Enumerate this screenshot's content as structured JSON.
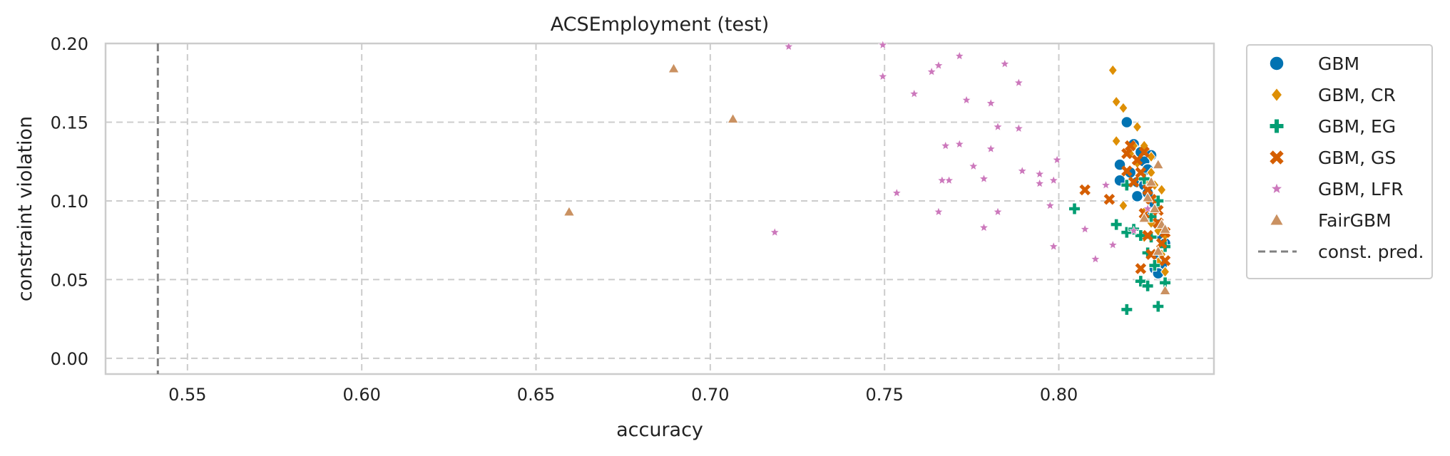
{
  "chart_data": {
    "type": "scatter",
    "title": "ACSEmployment (test)",
    "xlabel": "accuracy",
    "ylabel": "constraint violation",
    "xlim": [
      0.5265,
      0.8445
    ],
    "ylim": [
      -0.01,
      0.2
    ],
    "xticks": [
      "0.55",
      "0.60",
      "0.65",
      "0.70",
      "0.75",
      "0.80"
    ],
    "yticks": [
      "0.00",
      "0.05",
      "0.10",
      "0.15",
      "0.20"
    ],
    "grid": true,
    "legend_position": "outside-right",
    "reference_line": {
      "name": "const. pred.",
      "x": 0.5415,
      "style": "dashed",
      "color": "#808080"
    },
    "series": [
      {
        "name": "GBM",
        "marker": "circle",
        "color": "#0173b2",
        "points": [
          [
            0.8195,
            0.15
          ],
          [
            0.8215,
            0.136
          ],
          [
            0.8235,
            0.131
          ],
          [
            0.8265,
            0.129
          ],
          [
            0.8175,
            0.123
          ],
          [
            0.8205,
            0.118
          ],
          [
            0.8225,
            0.112
          ],
          [
            0.8245,
            0.11
          ],
          [
            0.8175,
            0.113
          ],
          [
            0.8225,
            0.103
          ],
          [
            0.8255,
            0.105
          ],
          [
            0.8275,
            0.098
          ],
          [
            0.8265,
            0.09
          ],
          [
            0.8285,
            0.085
          ],
          [
            0.8295,
            0.078
          ],
          [
            0.8305,
            0.073
          ],
          [
            0.8285,
            0.066
          ],
          [
            0.8295,
            0.059
          ],
          [
            0.8275,
            0.057
          ],
          [
            0.8285,
            0.054
          ],
          [
            0.8245,
            0.125
          ],
          [
            0.8255,
            0.12
          ]
        ]
      },
      {
        "name": "GBM, CR",
        "marker": "diamond",
        "color": "#de8f05",
        "points": [
          [
            0.8155,
            0.183
          ],
          [
            0.8165,
            0.163
          ],
          [
            0.8185,
            0.159
          ],
          [
            0.8225,
            0.147
          ],
          [
            0.8165,
            0.138
          ],
          [
            0.8215,
            0.135
          ],
          [
            0.8245,
            0.135
          ],
          [
            0.8265,
            0.128
          ],
          [
            0.8265,
            0.118
          ],
          [
            0.8275,
            0.11
          ],
          [
            0.8295,
            0.107
          ],
          [
            0.8185,
            0.097
          ],
          [
            0.8245,
            0.093
          ],
          [
            0.8265,
            0.086
          ],
          [
            0.8285,
            0.081
          ],
          [
            0.8305,
            0.078
          ],
          [
            0.8245,
            0.077
          ],
          [
            0.8295,
            0.066
          ],
          [
            0.8285,
            0.061
          ],
          [
            0.8305,
            0.055
          ],
          [
            0.8205,
            0.13
          ],
          [
            0.8225,
            0.124
          ],
          [
            0.8255,
            0.112
          ],
          [
            0.8275,
            0.101
          ]
        ]
      },
      {
        "name": "GBM, EG",
        "marker": "plus",
        "color": "#029e73",
        "points": [
          [
            0.8045,
            0.095
          ],
          [
            0.8165,
            0.085
          ],
          [
            0.8195,
            0.08
          ],
          [
            0.8215,
            0.082
          ],
          [
            0.8235,
            0.078
          ],
          [
            0.8265,
            0.077
          ],
          [
            0.8285,
            0.1
          ],
          [
            0.8305,
            0.071
          ],
          [
            0.8255,
            0.067
          ],
          [
            0.8275,
            0.059
          ],
          [
            0.8235,
            0.049
          ],
          [
            0.8255,
            0.046
          ],
          [
            0.8305,
            0.048
          ],
          [
            0.8195,
            0.031
          ],
          [
            0.8285,
            0.033
          ],
          [
            0.8265,
            0.09
          ],
          [
            0.8195,
            0.11
          ],
          [
            0.8245,
            0.114
          ]
        ]
      },
      {
        "name": "GBM, GS",
        "marker": "x",
        "color": "#d55e00",
        "points": [
          [
            0.8075,
            0.107
          ],
          [
            0.8145,
            0.101
          ],
          [
            0.8195,
            0.13
          ],
          [
            0.8205,
            0.135
          ],
          [
            0.8225,
            0.126
          ],
          [
            0.8245,
            0.131
          ],
          [
            0.8195,
            0.119
          ],
          [
            0.8215,
            0.112
          ],
          [
            0.8235,
            0.118
          ],
          [
            0.8255,
            0.107
          ],
          [
            0.8265,
            0.101
          ],
          [
            0.8285,
            0.094
          ],
          [
            0.8285,
            0.086
          ],
          [
            0.8305,
            0.08
          ],
          [
            0.8255,
            0.078
          ],
          [
            0.8265,
            0.066
          ],
          [
            0.8235,
            0.057
          ],
          [
            0.8295,
            0.073
          ],
          [
            0.8305,
            0.062
          ],
          [
            0.8245,
            0.092
          ]
        ]
      },
      {
        "name": "GBM, LFR",
        "marker": "star",
        "color": "#cc78bc",
        "points": [
          [
            0.7225,
            0.198
          ],
          [
            0.7495,
            0.199
          ],
          [
            0.7495,
            0.179
          ],
          [
            0.7585,
            0.168
          ],
          [
            0.7635,
            0.182
          ],
          [
            0.7655,
            0.186
          ],
          [
            0.7715,
            0.192
          ],
          [
            0.7845,
            0.187
          ],
          [
            0.7885,
            0.175
          ],
          [
            0.7735,
            0.164
          ],
          [
            0.7805,
            0.162
          ],
          [
            0.7675,
            0.135
          ],
          [
            0.7715,
            0.136
          ],
          [
            0.7805,
            0.133
          ],
          [
            0.7825,
            0.147
          ],
          [
            0.7885,
            0.146
          ],
          [
            0.7755,
            0.122
          ],
          [
            0.7785,
            0.114
          ],
          [
            0.7895,
            0.119
          ],
          [
            0.7945,
            0.117
          ],
          [
            0.7985,
            0.113
          ],
          [
            0.7995,
            0.126
          ],
          [
            0.7685,
            0.113
          ],
          [
            0.7665,
            0.113
          ],
          [
            0.7535,
            0.105
          ],
          [
            0.7655,
            0.093
          ],
          [
            0.7825,
            0.093
          ],
          [
            0.7945,
            0.111
          ],
          [
            0.7975,
            0.097
          ],
          [
            0.7785,
            0.083
          ],
          [
            0.7985,
            0.071
          ],
          [
            0.8075,
            0.082
          ],
          [
            0.8105,
            0.063
          ],
          [
            0.8155,
            0.072
          ],
          [
            0.8215,
            0.081
          ],
          [
            0.7185,
            0.08
          ],
          [
            0.8135,
            0.11
          ],
          [
            0.8255,
            0.095
          ]
        ]
      },
      {
        "name": "FairGBM",
        "marker": "triangle",
        "color": "#ca9161",
        "points": [
          [
            0.6895,
            0.184
          ],
          [
            0.7065,
            0.152
          ],
          [
            0.6595,
            0.093
          ],
          [
            0.8285,
            0.123
          ],
          [
            0.8305,
            0.043
          ],
          [
            0.8265,
            0.112
          ],
          [
            0.8245,
            0.089
          ],
          [
            0.8275,
            0.095
          ],
          [
            0.8295,
            0.085
          ],
          [
            0.8255,
            0.102
          ],
          [
            0.8285,
            0.068
          ],
          [
            0.8305,
            0.082
          ]
        ]
      }
    ]
  }
}
